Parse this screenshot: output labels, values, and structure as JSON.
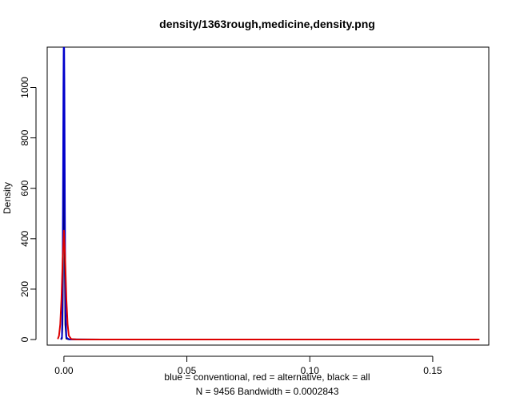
{
  "chart_data": {
    "type": "line",
    "title": "density/1363rough,medicine,density.png",
    "xlabel": "blue = conventional, red = alternative, black = all",
    "sublabel": "N = 9456   Bandwidth = 0.0002843",
    "ylabel": "Density",
    "xlim": [
      -0.0068,
      0.1728
    ],
    "ylim": [
      -22,
      1160
    ],
    "x_ticks": [
      0.0,
      0.05,
      0.1,
      0.15
    ],
    "x_tick_labels": [
      "0.00",
      "0.05",
      "0.10",
      "0.15"
    ],
    "y_ticks": [
      0,
      200,
      400,
      600,
      800,
      1000
    ],
    "y_tick_labels": [
      "0",
      "200",
      "400",
      "600",
      "800",
      "1000"
    ],
    "grid": false,
    "series": [
      {
        "color": "#000000",
        "x": [
          -0.0012,
          -0.0008,
          -0.0006,
          -0.0004,
          -0.0002,
          -0.0001,
          0.0,
          0.0001,
          0.0002,
          0.0004,
          0.0006,
          0.001,
          0.002,
          0.005,
          0.02,
          0.05,
          0.1,
          0.15,
          0.168
        ],
        "y": [
          0,
          5,
          60,
          260,
          700,
          950,
          1130,
          950,
          700,
          260,
          60,
          4,
          1,
          0.5,
          0.2,
          0.1,
          0.05,
          0.05,
          0
        ]
      },
      {
        "color": "#0000cc",
        "x": [
          -0.0012,
          -0.0008,
          -0.0006,
          -0.0004,
          -0.0002,
          -0.0001,
          0.0,
          0.0001,
          0.0002,
          0.0004,
          0.0006,
          0.001,
          0.002,
          0.005,
          0.02,
          0.05,
          0.1,
          0.15,
          0.168
        ],
        "y": [
          0,
          10,
          120,
          500,
          1000,
          1150,
          1180,
          1150,
          1000,
          500,
          120,
          8,
          1,
          0.5,
          0.2,
          0.1,
          0.05,
          0.05,
          0
        ]
      },
      {
        "color": "#dd0000",
        "x": [
          -0.0025,
          -0.002,
          -0.0015,
          -0.001,
          -0.0005,
          0.0,
          0.0005,
          0.001,
          0.0015,
          0.002,
          0.003,
          0.005,
          0.01,
          0.05,
          0.1,
          0.15,
          0.169
        ],
        "y": [
          2,
          15,
          60,
          160,
          320,
          432,
          320,
          160,
          60,
          15,
          2,
          0.5,
          0.2,
          0.1,
          0.05,
          0.05,
          0
        ]
      }
    ]
  }
}
